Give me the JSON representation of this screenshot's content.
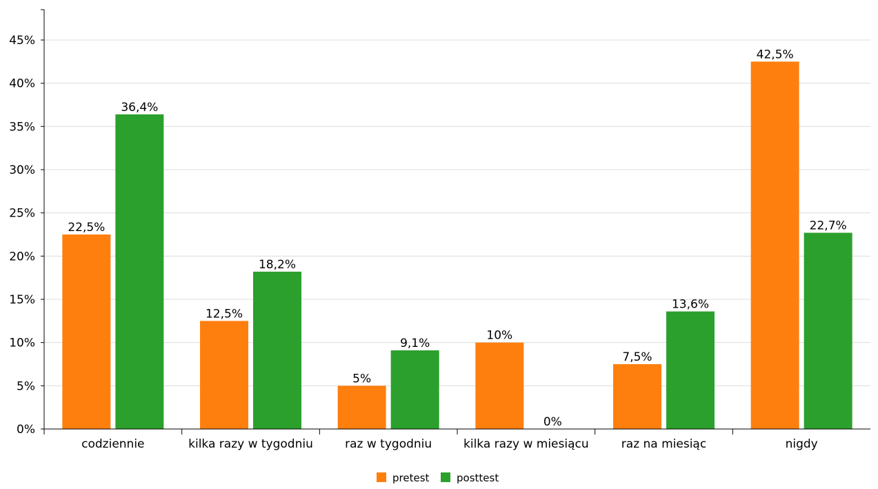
{
  "chart_data": {
    "type": "bar",
    "categories": [
      "codziennie",
      "kilka razy w tygodniu",
      "raz w tygodniu",
      "kilka razy w miesiącu",
      "raz na miesiąc",
      "nigdy"
    ],
    "series": [
      {
        "name": "pretest",
        "color": "#ff7f0e",
        "values": [
          22.5,
          12.5,
          5,
          10,
          7.5,
          42.5
        ],
        "labels": [
          "22,5%",
          "12,5%",
          "5%",
          "10%",
          "7,5%",
          "42,5%"
        ]
      },
      {
        "name": "posttest",
        "color": "#2ca02c",
        "values": [
          36.4,
          18.2,
          9.1,
          0,
          13.6,
          22.7
        ],
        "labels": [
          "36,4%",
          "18,2%",
          "9,1%",
          "0%",
          "13,6%",
          "22,7%"
        ]
      }
    ],
    "ylim": [
      0,
      45
    ],
    "y_ticks": [
      0,
      5,
      10,
      15,
      20,
      25,
      30,
      35,
      40,
      45
    ],
    "y_tick_labels": [
      "0%",
      "5%",
      "10%",
      "15%",
      "20%",
      "25%",
      "30%",
      "35%",
      "40%",
      "45%"
    ],
    "grid": true,
    "legend_position": "bottom-center",
    "title": "",
    "xlabel": "",
    "ylabel": ""
  }
}
